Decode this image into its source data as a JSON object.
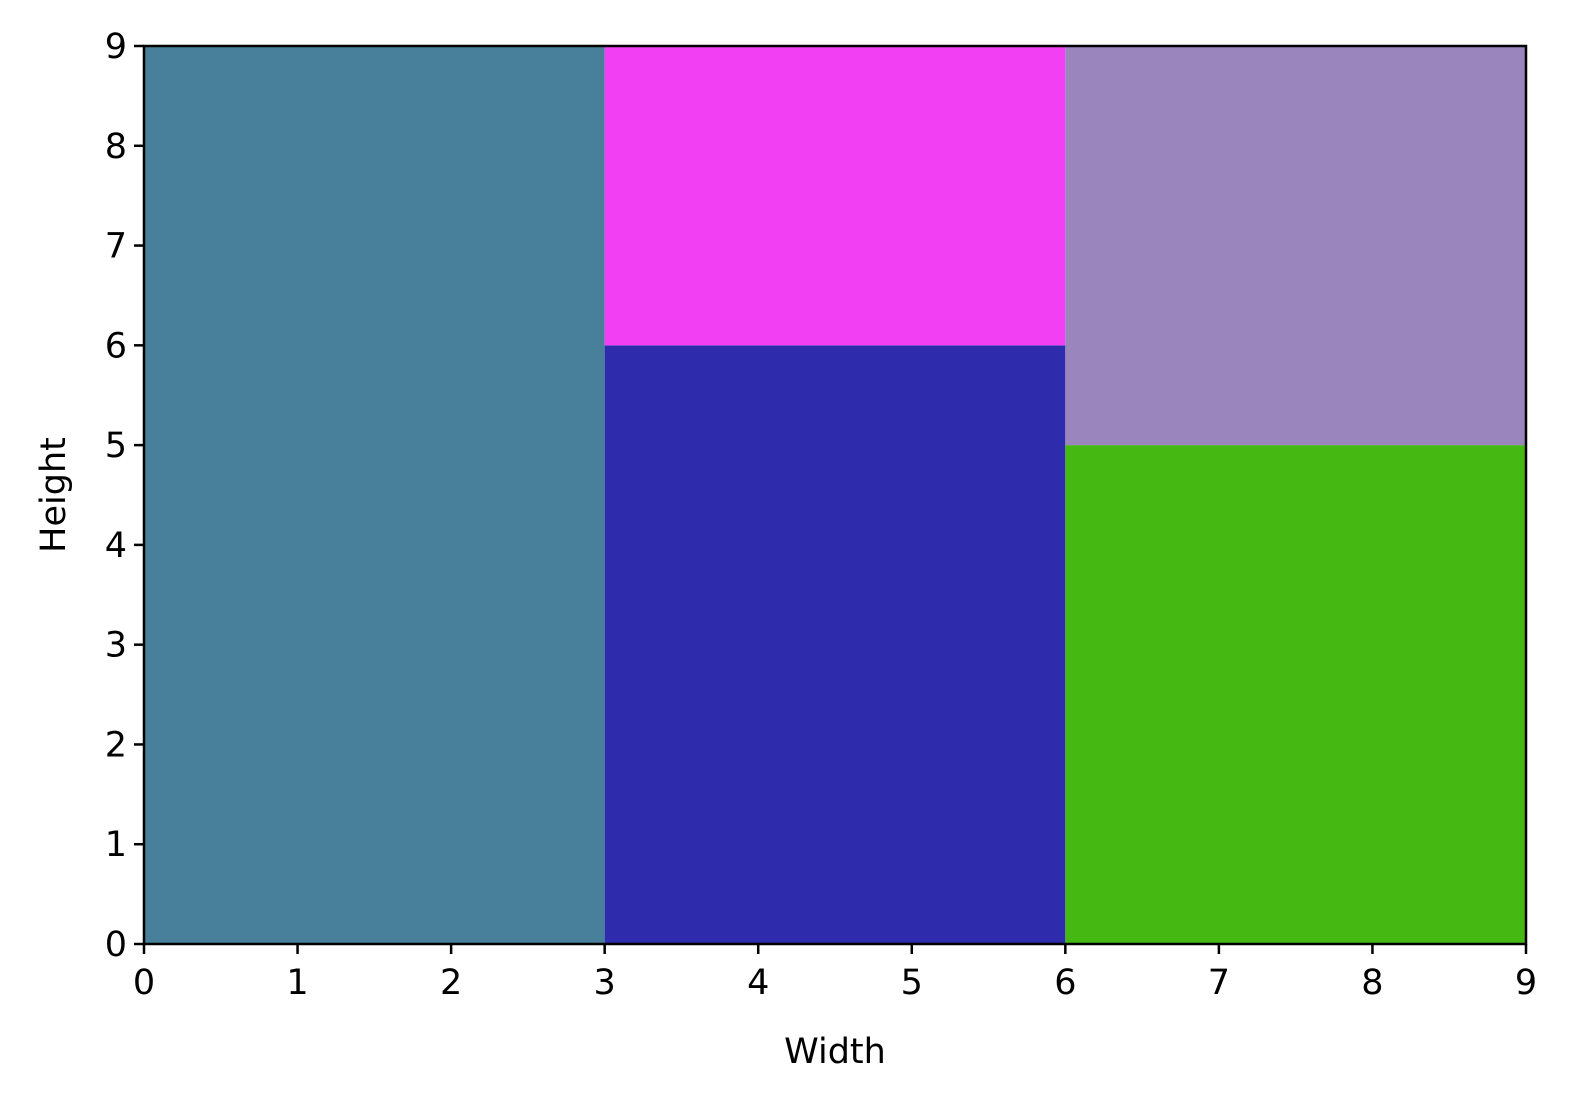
{
  "chart_data": {
    "type": "treemap",
    "title": "",
    "xlabel": "Width",
    "ylabel": "Height",
    "xlim": [
      0,
      9
    ],
    "ylim": [
      0,
      9
    ],
    "x_ticks": [
      "0",
      "1",
      "2",
      "3",
      "4",
      "5",
      "6",
      "7",
      "8",
      "9"
    ],
    "y_ticks": [
      "0",
      "1",
      "2",
      "3",
      "4",
      "5",
      "6",
      "7",
      "8",
      "9"
    ],
    "grid": false,
    "legend": "none",
    "rectangles": [
      {
        "x": 0,
        "y": 0,
        "width": 3,
        "height": 9,
        "color": "#48809b"
      },
      {
        "x": 3,
        "y": 0,
        "width": 3,
        "height": 6,
        "color": "#2e2cad"
      },
      {
        "x": 3,
        "y": 6,
        "width": 3,
        "height": 3,
        "color": "#f23ff3"
      },
      {
        "x": 6,
        "y": 0,
        "width": 3,
        "height": 5,
        "color": "#45b912"
      },
      {
        "x": 6,
        "y": 5,
        "width": 3,
        "height": 4,
        "color": "#9b85bd"
      }
    ]
  }
}
